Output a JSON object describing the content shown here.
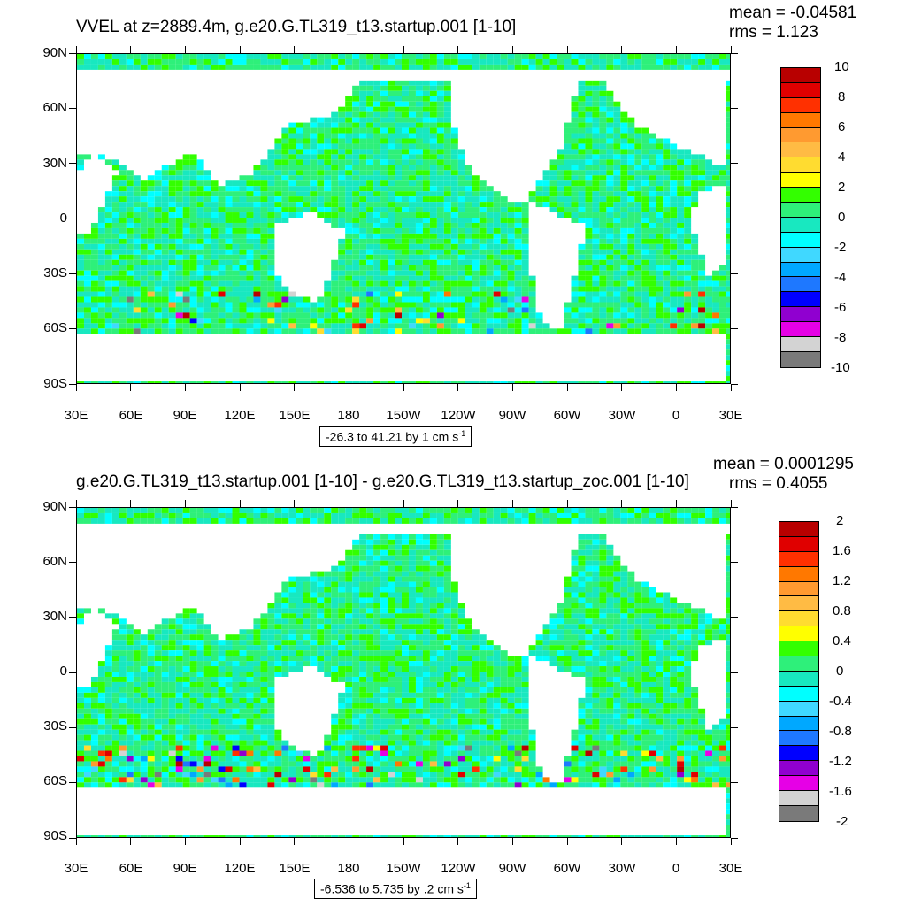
{
  "palette": [
    "#7a7a7a",
    "#d3d3d3",
    "#e600e6",
    "#9000d0",
    "#0000ff",
    "#1e78ff",
    "#00a8ff",
    "#40d8ff",
    "#00ffff",
    "#18e8c0",
    "#2ef07a",
    "#33ff00",
    "#ffff00",
    "#ffdc30",
    "#ffbb44",
    "#ff9a30",
    "#ff7800",
    "#ff3000",
    "#e00000",
    "#b80000"
  ],
  "chart_data": [
    {
      "type": "heatmap",
      "title": "VVEL at z=2889.4m, g.e20.G.TL319_t13.startup.001 [1-10]",
      "mean_text": "mean = -0.04581",
      "rms_text": "rms = 1.123",
      "range_text": "-26.3 to 41.21 by 1 cm s",
      "range_unit_sup": "-1",
      "y_ticks": [
        "90N",
        "60N",
        "30N",
        "0",
        "30S",
        "60S",
        "90S"
      ],
      "x_ticks": [
        "30E",
        "60E",
        "90E",
        "120E",
        "150E",
        "180",
        "150W",
        "120W",
        "90W",
        "60W",
        "30W",
        "0",
        "30E"
      ],
      "colorbar_labels": [
        "10",
        "8",
        "6",
        "4",
        "2",
        "0",
        "-2",
        "-4",
        "-6",
        "-8",
        "-10"
      ],
      "colorbar_min": -10,
      "colorbar_max": 10,
      "field_mean": -0.04581,
      "field_rms": 1.123
    },
    {
      "type": "heatmap",
      "title": "g.e20.G.TL319_t13.startup.001 [1-10] - g.e20.G.TL319_t13.startup_zoc.001 [1-10]",
      "mean_text": "mean = 0.0001295",
      "rms_text": "rms = 0.4055",
      "range_text": "-6.536 to 5.735 by .2 cm s",
      "range_unit_sup": "-1",
      "y_ticks": [
        "90N",
        "60N",
        "30N",
        "0",
        "30S",
        "60S",
        "90S"
      ],
      "x_ticks": [
        "30E",
        "60E",
        "90E",
        "120E",
        "150E",
        "180",
        "150W",
        "120W",
        "90W",
        "60W",
        "30W",
        "0",
        "30E"
      ],
      "colorbar_labels": [
        "2",
        "1.6",
        "1.2",
        "0.8",
        "0.4",
        "0",
        "-0.4",
        "-0.8",
        "-1.2",
        "-1.6",
        "-2"
      ],
      "colorbar_min": -2,
      "colorbar_max": 2,
      "field_mean": 0.0001295,
      "field_rms": 0.4055
    }
  ]
}
